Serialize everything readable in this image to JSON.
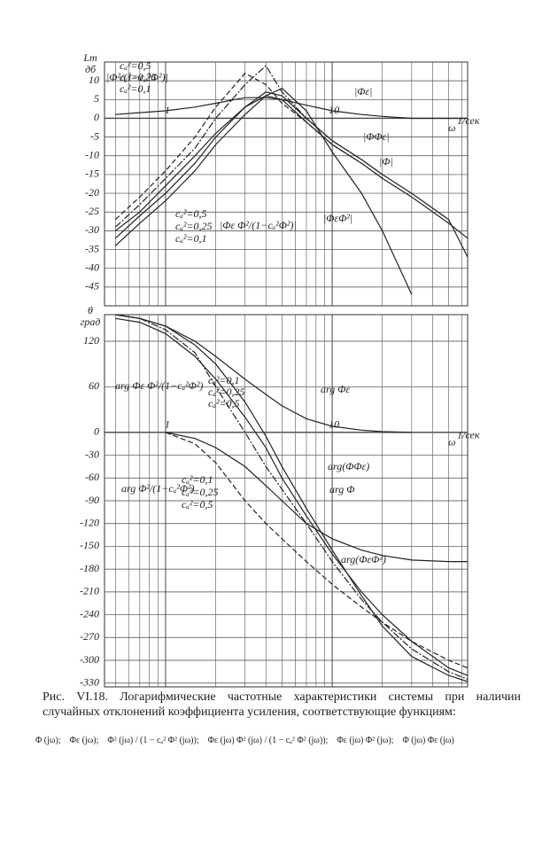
{
  "chart_data": [
    {
      "type": "line",
      "ylabel": "Lm",
      "yunit": "дб",
      "xlabel": "ω",
      "xunit": "1/сек",
      "xscale": "log",
      "xlim": [
        0.43,
        65
      ],
      "xticks": [
        1,
        10
      ],
      "xminor": [
        0.5,
        0.6,
        0.7,
        0.8,
        0.9,
        2,
        3,
        4,
        5,
        6,
        7,
        8,
        9,
        20,
        30,
        40,
        50,
        60
      ],
      "ylim": [
        -50,
        15
      ],
      "yticks": [
        10,
        5,
        0,
        -5,
        -10,
        -15,
        -20,
        -25,
        -30,
        -35,
        -40,
        -45
      ],
      "grid": true,
      "x": [
        0.5,
        0.7,
        1,
        1.5,
        2,
        3,
        4,
        5,
        7,
        10,
        15,
        20,
        30,
        50,
        65
      ],
      "series": [
        {
          "name": "|Φε|",
          "color": "#222",
          "values": [
            1,
            1.5,
            2,
            3,
            4,
            5.5,
            5.5,
            5,
            3.5,
            2,
            1,
            0.5,
            0,
            0,
            0
          ]
        },
        {
          "name": "|ΦΦε|",
          "color": "#222",
          "values": [
            -30,
            -25,
            -18,
            -10,
            -4,
            3,
            6,
            5,
            -1,
            -7,
            -12,
            -16,
            -21,
            -28,
            -32
          ]
        },
        {
          "name": "|Φ|",
          "color": "#222",
          "values": [
            -32,
            -26,
            -20,
            -12,
            -5,
            3,
            7,
            6,
            0,
            -6,
            -11,
            -15,
            -20,
            -27,
            -37
          ]
        },
        {
          "name": "|ΦεΦ²|",
          "color": "#222",
          "values": [
            -34,
            -28,
            -22,
            -14,
            -7,
            1,
            6,
            8,
            2,
            -9,
            -20,
            -30,
            -47,
            null,
            null
          ]
        },
        {
          "color": "#222",
          "dash": "6 3",
          "values": [
            -27,
            -21,
            -14,
            -5,
            3,
            12,
            9,
            4,
            -1,
            -7,
            -12,
            -16,
            null,
            null,
            null
          ]
        },
        {
          "color": "#222",
          "dash": "8 2 2 2",
          "values": [
            -29,
            -23,
            -16,
            -8,
            0,
            9,
            14,
            7,
            0,
            -6,
            -11,
            -15,
            null,
            null,
            null
          ]
        }
      ],
      "annotations": [
        "|Φ²/(1−cₐ²Φ²)|",
        "cₐ²=0,5",
        "cₐ²=0,25",
        "cₐ²=0,1",
        "|Φε Φ²/(1−cₐ²Φ²)|",
        "cₐ²=0,5",
        "cₐ²=0,25",
        "cₐ²=0,1"
      ]
    },
    {
      "type": "line",
      "ylabel": "θ",
      "yunit": "град",
      "xlabel": "ω",
      "xunit": "1/сек",
      "xscale": "log",
      "xlim": [
        0.43,
        65
      ],
      "xticks": [
        1,
        10
      ],
      "xminor": [
        0.5,
        0.6,
        0.7,
        0.8,
        0.9,
        2,
        3,
        4,
        5,
        6,
        7,
        8,
        9,
        20,
        30,
        40,
        50,
        60
      ],
      "ylim": [
        -335,
        155
      ],
      "yticks": [
        120,
        60,
        0,
        -30,
        -60,
        -90,
        -120,
        -150,
        -180,
        -210,
        -240,
        -270,
        -300,
        -330
      ],
      "grid": true,
      "x": [
        0.5,
        0.7,
        1,
        1.5,
        2,
        3,
        4,
        5,
        7,
        10,
        15,
        20,
        30,
        50,
        65
      ],
      "series": [
        {
          "name": "arg Φε",
          "color": "#222",
          "values": [
            155,
            150,
            140,
            120,
            100,
            70,
            50,
            35,
            18,
            8,
            3,
            1,
            0,
            null,
            null
          ]
        },
        {
          "name": "arg(ΦΦε)",
          "color": "#222",
          "values": [
            null,
            null,
            0,
            -8,
            -20,
            -45,
            -70,
            -90,
            -120,
            -140,
            -155,
            -162,
            -168,
            -170,
            -170
          ]
        },
        {
          "name": "arg Φ",
          "color": "#222",
          "values": [
            150,
            145,
            130,
            100,
            70,
            20,
            -20,
            -60,
            -110,
            -160,
            -210,
            -240,
            -275,
            -310,
            -320
          ]
        },
        {
          "name": "arg(ΦεΦ²)",
          "color": "#222",
          "values": [
            155,
            150,
            140,
            115,
            90,
            40,
            -5,
            -45,
            -100,
            -155,
            -215,
            -255,
            -295,
            -320,
            -328
          ]
        },
        {
          "color": "#222",
          "dash": "6 3",
          "values": [
            null,
            null,
            0,
            -15,
            -40,
            -90,
            -120,
            -140,
            -170,
            -200,
            -230,
            -250,
            -275,
            -300,
            -310
          ]
        },
        {
          "color": "#222",
          "dash": "8 2 2 2",
          "values": [
            155,
            150,
            135,
            105,
            60,
            0,
            -45,
            -75,
            -120,
            -170,
            -220,
            -250,
            -285,
            -315,
            -325
          ]
        }
      ],
      "annotations": [
        "arg Φε Φ²/(1−cₐ²Φ²)",
        "cₐ²=0,1",
        "cₐ²=0,25",
        "cₐ²=0,5",
        "arg Φ²/(1−cₐ²Φ²)",
        "cₐ²=0,1",
        "cₐ²=0,25",
        "cₐ²=0,5"
      ]
    }
  ],
  "caption": "Рис. VI.18. Логарифмические частотные характеристики системы при наличии случайных отклонений коэффициента усиления, соответствующие функциям:",
  "formula": [
    "Φ (jω);",
    "Φε (jω);",
    "Φ² (jω) / (1 − cₐ² Φ² (jω));",
    "Φε (jω) Φ² (jω) / (1 − cₐ² Φ² (jω));",
    "Φε (jω) Φ² (jω);",
    "Φ (jω) Φε (jω)"
  ]
}
